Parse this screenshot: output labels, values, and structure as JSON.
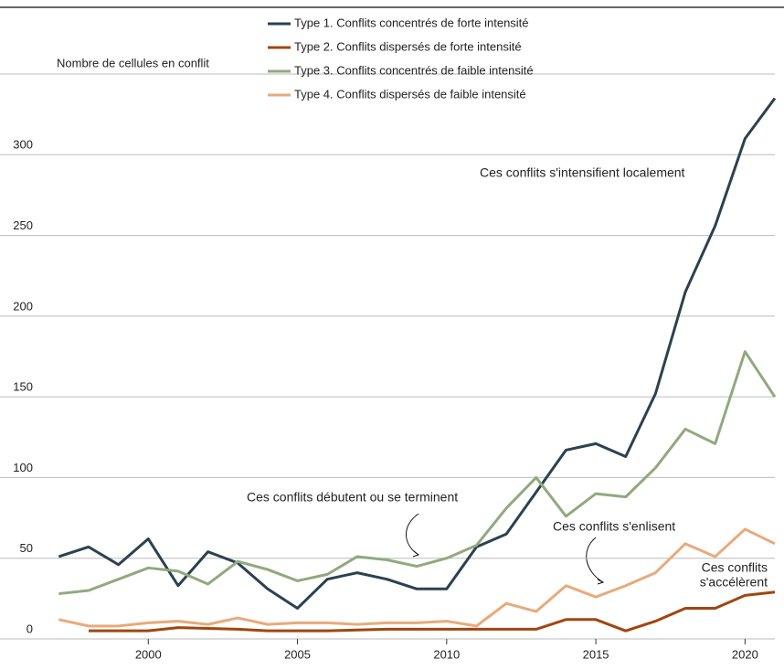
{
  "chart_data": {
    "type": "line",
    "y_axis_label": "Nombre de cellules en conflit",
    "x": [
      1997,
      1998,
      1999,
      2000,
      2001,
      2002,
      2003,
      2004,
      2005,
      2006,
      2007,
      2008,
      2009,
      2010,
      2011,
      2012,
      2013,
      2014,
      2015,
      2016,
      2017,
      2018,
      2019,
      2020,
      2021
    ],
    "series": [
      {
        "name": "Type 1. Conflits concentrés de forte intensité",
        "color": "#2b4150",
        "values": [
          51,
          57,
          46,
          62,
          33,
          54,
          47,
          31,
          19,
          37,
          41,
          37,
          31,
          31,
          57,
          65,
          91,
          117,
          121,
          113,
          152,
          215,
          256,
          310,
          335
        ]
      },
      {
        "name": "Type 2. Conflits dispersés de forte intensité",
        "color": "#a0460f",
        "values": [
          null,
          5,
          5,
          5,
          7,
          6.5,
          6,
          5,
          5,
          5,
          5.5,
          6,
          6,
          6,
          6,
          6,
          6,
          12,
          12,
          5,
          11,
          19,
          19,
          27,
          29
        ]
      },
      {
        "name": "Type 3. Conflits concentrés de faible intensité",
        "color": "#8faa7d",
        "values": [
          28,
          30,
          37,
          44,
          42,
          34,
          48,
          43,
          36,
          40,
          51,
          49,
          45,
          50,
          58,
          81,
          100,
          76,
          90,
          88,
          106,
          130,
          121,
          178,
          150
        ]
      },
      {
        "name": "Type 4. Conflits dispersés de faible intensité",
        "color": "#e8aa7a",
        "values": [
          12,
          8,
          8,
          10,
          11,
          9,
          13,
          9,
          10,
          10,
          9,
          10,
          10,
          11,
          8,
          22,
          17,
          33,
          26,
          33,
          41,
          59,
          51,
          68,
          59
        ]
      }
    ],
    "annotations": [
      {
        "lines": [
          "Ces conflits s'intensifient localement"
        ]
      },
      {
        "lines": [
          "Ces conflits débutent ou se terminent"
        ]
      },
      {
        "lines": [
          "Ces conflits s'enlisent"
        ]
      },
      {
        "lines": [
          "Ces conflits",
          "s'accélèrent"
        ]
      }
    ],
    "xlim": [
      1996.5,
      2021
    ],
    "xticks": [
      2000,
      2005,
      2010,
      2015,
      2020
    ],
    "ylim": [
      0,
      350
    ],
    "yticks": [
      0,
      50,
      100,
      150,
      200,
      250,
      300
    ],
    "grid": true
  }
}
